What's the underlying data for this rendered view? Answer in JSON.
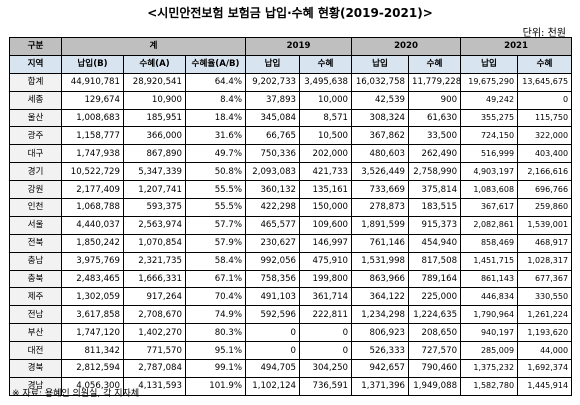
{
  "title": "<시민안전보험 보험금 납입·수혜 현황(2019-2021)>",
  "unit": "단위: 천원",
  "table": {
    "header_row1": {
      "category": "구분",
      "total": "계",
      "y2019": "2019",
      "y2020": "2020",
      "y2021": "2021"
    },
    "header_row2": {
      "region": "지역",
      "paid_b": "납입(B)",
      "benefit_a": "수혜(A)",
      "ratio": "수혜율(A/B)",
      "paid": "납입",
      "benefit": "수혜"
    },
    "rows": [
      {
        "region": "합계",
        "total_paid": "44,910,781",
        "total_benefit": "28,920,541",
        "ratio": "64.4%",
        "p2019": "9,202,733",
        "b2019": "3,495,638",
        "p2020": "16,032,758",
        "b2020": "11,779,228",
        "p2021": "19,675,290",
        "b2021": "13,645,675"
      },
      {
        "region": "세종",
        "total_paid": "129,674",
        "total_benefit": "10,900",
        "ratio": "8.4%",
        "p2019": "37,893",
        "b2019": "10,000",
        "p2020": "42,539",
        "b2020": "900",
        "p2021": "49,242",
        "b2021": "0"
      },
      {
        "region": "울산",
        "total_paid": "1,008,683",
        "total_benefit": "185,951",
        "ratio": "18.4%",
        "p2019": "345,084",
        "b2019": "8,571",
        "p2020": "308,324",
        "b2020": "61,630",
        "p2021": "355,275",
        "b2021": "115,750"
      },
      {
        "region": "광주",
        "total_paid": "1,158,777",
        "total_benefit": "366,000",
        "ratio": "31.6%",
        "p2019": "66,765",
        "b2019": "10,500",
        "p2020": "367,862",
        "b2020": "33,500",
        "p2021": "724,150",
        "b2021": "322,000"
      },
      {
        "region": "대구",
        "total_paid": "1,747,938",
        "total_benefit": "867,890",
        "ratio": "49.7%",
        "p2019": "750,336",
        "b2019": "202,000",
        "p2020": "480,603",
        "b2020": "262,490",
        "p2021": "516,999",
        "b2021": "403,400"
      },
      {
        "region": "경기",
        "total_paid": "10,522,729",
        "total_benefit": "5,347,339",
        "ratio": "50.8%",
        "p2019": "2,093,083",
        "b2019": "421,733",
        "p2020": "3,526,449",
        "b2020": "2,758,990",
        "p2021": "4,903,197",
        "b2021": "2,166,616"
      },
      {
        "region": "강원",
        "total_paid": "2,177,409",
        "total_benefit": "1,207,741",
        "ratio": "55.5%",
        "p2019": "360,132",
        "b2019": "135,161",
        "p2020": "733,669",
        "b2020": "375,814",
        "p2021": "1,083,608",
        "b2021": "696,766"
      },
      {
        "region": "인천",
        "total_paid": "1,068,788",
        "total_benefit": "593,375",
        "ratio": "55.5%",
        "p2019": "422,298",
        "b2019": "150,000",
        "p2020": "278,873",
        "b2020": "183,515",
        "p2021": "367,617",
        "b2021": "259,860"
      },
      {
        "region": "서울",
        "total_paid": "4,440,037",
        "total_benefit": "2,563,974",
        "ratio": "57.7%",
        "p2019": "465,577",
        "b2019": "109,600",
        "p2020": "1,891,599",
        "b2020": "915,373",
        "p2021": "2,082,861",
        "b2021": "1,539,001"
      },
      {
        "region": "전북",
        "total_paid": "1,850,242",
        "total_benefit": "1,070,854",
        "ratio": "57.9%",
        "p2019": "230,627",
        "b2019": "146,997",
        "p2020": "761,146",
        "b2020": "454,940",
        "p2021": "858,469",
        "b2021": "468,917"
      },
      {
        "region": "충남",
        "total_paid": "3,975,769",
        "total_benefit": "2,321,735",
        "ratio": "58.4%",
        "p2019": "992,056",
        "b2019": "475,910",
        "p2020": "1,531,998",
        "b2020": "817,508",
        "p2021": "1,451,715",
        "b2021": "1,028,317"
      },
      {
        "region": "충북",
        "total_paid": "2,483,465",
        "total_benefit": "1,666,331",
        "ratio": "67.1%",
        "p2019": "758,356",
        "b2019": "199,800",
        "p2020": "863,966",
        "b2020": "789,164",
        "p2021": "861,143",
        "b2021": "677,367"
      },
      {
        "region": "제주",
        "total_paid": "1,302,059",
        "total_benefit": "917,264",
        "ratio": "70.4%",
        "p2019": "491,103",
        "b2019": "361,714",
        "p2020": "364,122",
        "b2020": "225,000",
        "p2021": "446,834",
        "b2021": "330,550"
      },
      {
        "region": "전남",
        "total_paid": "3,617,858",
        "total_benefit": "2,708,670",
        "ratio": "74.9%",
        "p2019": "592,596",
        "b2019": "222,811",
        "p2020": "1,234,298",
        "b2020": "1,224,635",
        "p2021": "1,790,964",
        "b2021": "1,261,224"
      },
      {
        "region": "부산",
        "total_paid": "1,747,120",
        "total_benefit": "1,402,270",
        "ratio": "80.3%",
        "p2019": "0",
        "b2019": "0",
        "p2020": "806,923",
        "b2020": "208,650",
        "p2021": "940,197",
        "b2021": "1,193,620"
      },
      {
        "region": "대전",
        "total_paid": "811,342",
        "total_benefit": "771,570",
        "ratio": "95.1%",
        "p2019": "0",
        "b2019": "0",
        "p2020": "526,333",
        "b2020": "727,570",
        "p2021": "285,009",
        "b2021": "44,000"
      },
      {
        "region": "경북",
        "total_paid": "2,812,594",
        "total_benefit": "2,787,084",
        "ratio": "99.1%",
        "p2019": "494,705",
        "b2019": "304,250",
        "p2020": "942,657",
        "b2020": "790,460",
        "p2021": "1,375,232",
        "b2021": "1,692,374"
      },
      {
        "region": "경남",
        "total_paid": "4,056,300",
        "total_benefit": "4,131,593",
        "ratio": "101.9%",
        "p2019": "1,102,124",
        "b2019": "736,591",
        "p2020": "1,371,396",
        "b2020": "1,949,088",
        "p2021": "1,582,780",
        "b2021": "1,445,914"
      }
    ]
  },
  "footnote": "※ 자료: 용혜인 의원실, 각 지자체"
}
